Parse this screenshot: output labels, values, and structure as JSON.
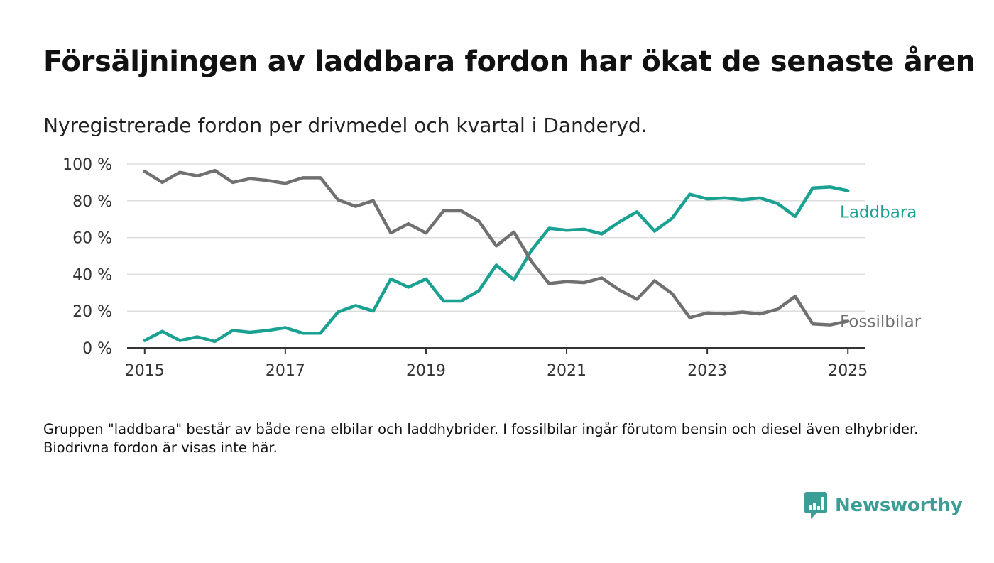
{
  "header": {
    "title": "Försäljningen av laddbara fordon har ökat de senaste åren",
    "subtitle": "Nyregistrerade fordon per drivmedel och kvartal i Danderyd."
  },
  "footnote": "Gruppen \"laddbara\" består av både rena elbilar och laddhybrider. I fossilbilar ingår förutom bensin och diesel även elhybrider. Biodrivna fordon är visas inte här.",
  "brand": {
    "name": "Newsworthy",
    "icon": "newsworthy-logo-icon",
    "color": "#3a9e96"
  },
  "chart_data": {
    "type": "line",
    "title": "Försäljningen av laddbara fordon har ökat de senaste åren",
    "subtitle": "Nyregistrerade fordon per drivmedel och kvartal i Danderyd.",
    "xlabel": "",
    "ylabel": "",
    "xlim": [
      2014.75,
      2025.25
    ],
    "ylim": [
      0,
      100
    ],
    "x_ticks": [
      2015,
      2017,
      2019,
      2021,
      2023,
      2025
    ],
    "x_tick_labels": [
      "2015",
      "2017",
      "2019",
      "2021",
      "2023",
      "2025"
    ],
    "y_ticks": [
      0,
      20,
      40,
      60,
      80,
      100
    ],
    "y_tick_labels": [
      "0 %",
      "20 %",
      "40 %",
      "60 %",
      "80 %",
      "100 %"
    ],
    "grid": "horizontal",
    "legend": "direct labels at line ends",
    "x": [
      2015,
      2015.25,
      2015.5,
      2015.75,
      2016,
      2016.25,
      2016.5,
      2016.75,
      2017,
      2017.25,
      2017.5,
      2017.75,
      2018,
      2018.25,
      2018.5,
      2018.75,
      2019,
      2019.25,
      2019.5,
      2019.75,
      2020,
      2020.25,
      2020.5,
      2020.75,
      2021,
      2021.25,
      2021.5,
      2021.75,
      2022,
      2022.25,
      2022.5,
      2022.75,
      2023,
      2023.25,
      2023.5,
      2023.75,
      2024,
      2024.25,
      2024.5,
      2024.75,
      2025
    ],
    "series": [
      {
        "name": "Laddbara",
        "color": "#1aa192",
        "values": [
          4,
          9,
          4,
          6,
          3.5,
          9.5,
          8.5,
          9.5,
          11,
          8,
          8,
          19.5,
          23,
          20,
          37.5,
          33,
          37.5,
          25.5,
          25.5,
          31,
          45,
          37,
          53,
          65,
          64,
          64.5,
          62,
          68.5,
          74,
          63.5,
          70.5,
          83.5,
          81,
          81.5,
          80.5,
          81.5,
          78.5,
          71.5,
          87,
          87.5,
          85.5
        ]
      },
      {
        "name": "Fossilbilar",
        "color": "#707070",
        "values": [
          96,
          90,
          95.5,
          93.5,
          96.5,
          90,
          92,
          91,
          89.5,
          92.5,
          92.5,
          80.5,
          77,
          80,
          62.5,
          67.5,
          62.5,
          74.5,
          74.5,
          69,
          55.5,
          63,
          47,
          35,
          36,
          35.5,
          38,
          31.5,
          26.5,
          36.5,
          29.5,
          16.5,
          19,
          18.5,
          19.5,
          18.5,
          21,
          28,
          13,
          12.5,
          14.5
        ]
      }
    ]
  }
}
